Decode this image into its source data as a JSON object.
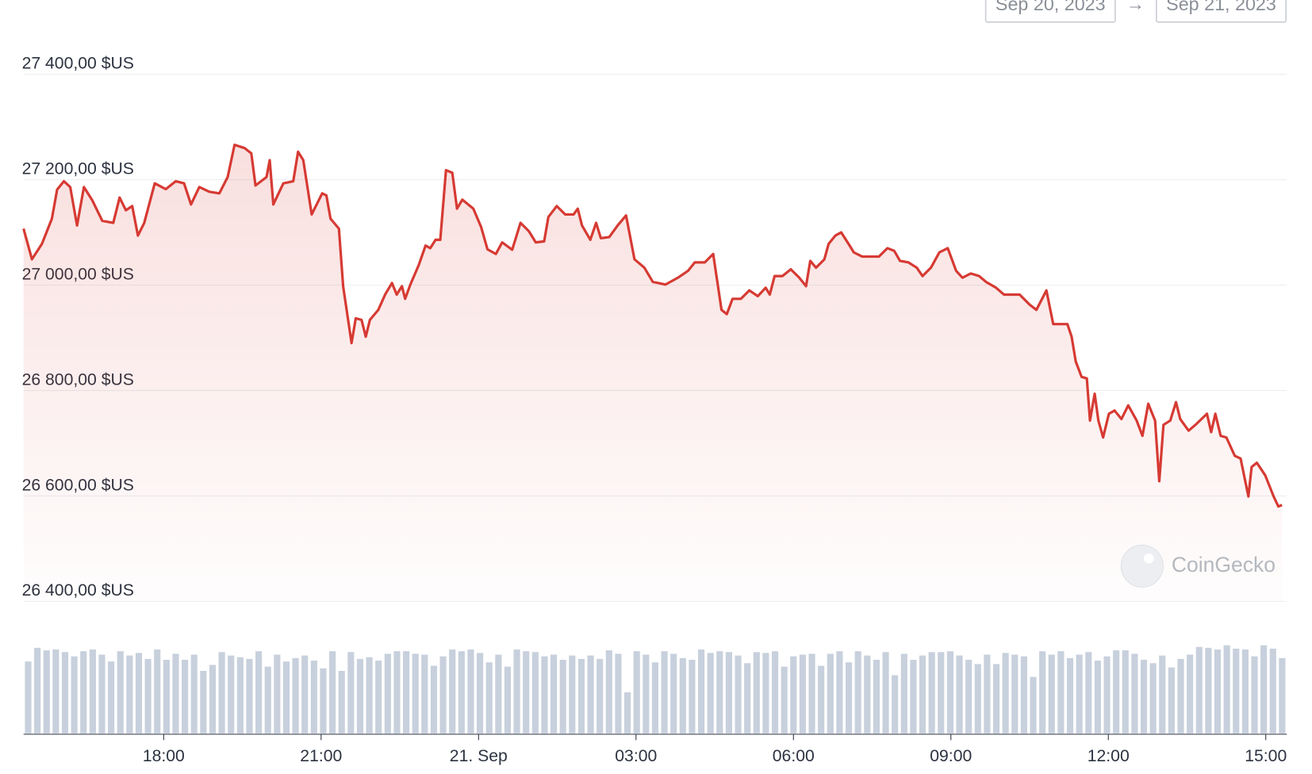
{
  "header": {
    "date_from": "Sep 20, 2023",
    "date_to": "Sep 21, 2023",
    "watermark": "CoinGecko"
  },
  "chart_data": {
    "type": "line",
    "xlim": [
      15.33,
      39.4
    ],
    "xticks": [
      {
        "value": 18,
        "label": "18:00"
      },
      {
        "value": 21,
        "label": "21:00"
      },
      {
        "value": 24,
        "label": "21. Sep"
      },
      {
        "value": 27,
        "label": "03:00"
      },
      {
        "value": 30,
        "label": "06:00"
      },
      {
        "value": 33,
        "label": "09:00"
      },
      {
        "value": 36,
        "label": "12:00"
      },
      {
        "value": 39,
        "label": "15:00"
      }
    ],
    "ylim": [
      26400,
      27400
    ],
    "yticks": [
      {
        "value": 26400,
        "label": "26 400,00 $US"
      },
      {
        "value": 26600,
        "label": "26 600,00 $US"
      },
      {
        "value": 26800,
        "label": "26 800,00 $US"
      },
      {
        "value": 27000,
        "label": "27 000,00 $US"
      },
      {
        "value": 27200,
        "label": "27 200,00 $US"
      },
      {
        "value": 27400,
        "label": "27 400,00 $US"
      }
    ],
    "grid": true,
    "x": [
      15.33,
      15.49,
      15.68,
      15.87,
      15.97,
      16.1,
      16.22,
      16.35,
      16.48,
      16.64,
      16.83,
      17.04,
      17.16,
      17.28,
      17.4,
      17.51,
      17.63,
      17.83,
      18.04,
      18.23,
      18.39,
      18.52,
      18.68,
      18.87,
      19.06,
      19.22,
      19.35,
      19.54,
      19.67,
      19.75,
      19.96,
      20.02,
      20.09,
      20.28,
      20.47,
      20.56,
      20.66,
      20.82,
      21.02,
      21.1,
      21.18,
      21.34,
      21.42,
      21.58,
      21.66,
      21.77,
      21.85,
      21.93,
      22.09,
      22.22,
      22.35,
      22.44,
      22.54,
      22.6,
      22.7,
      22.86,
      22.99,
      23.08,
      23.18,
      23.27,
      23.38,
      23.5,
      23.59,
      23.69,
      23.9,
      24.05,
      24.17,
      24.33,
      24.45,
      24.64,
      24.8,
      24.96,
      25.09,
      25.25,
      25.33,
      25.49,
      25.65,
      25.81,
      25.89,
      25.97,
      26.13,
      26.24,
      26.33,
      26.49,
      26.65,
      26.81,
      26.97,
      27.16,
      27.32,
      27.56,
      27.8,
      27.99,
      28.12,
      28.31,
      28.47,
      28.63,
      28.73,
      28.84,
      29.0,
      29.16,
      29.32,
      29.47,
      29.55,
      29.64,
      29.79,
      29.95,
      30.11,
      30.24,
      30.32,
      30.43,
      30.59,
      30.67,
      30.8,
      30.91,
      31.07,
      31.15,
      31.31,
      31.47,
      31.63,
      31.79,
      31.92,
      32.03,
      32.19,
      32.35,
      32.46,
      32.62,
      32.78,
      32.94,
      33.1,
      33.22,
      33.38,
      33.54,
      33.67,
      33.86,
      34.01,
      34.31,
      34.5,
      34.63,
      34.82,
      34.95,
      35.06,
      35.22,
      35.3,
      35.38,
      35.49,
      35.59,
      35.65,
      35.74,
      35.81,
      35.9,
      36.01,
      36.12,
      36.25,
      36.38,
      36.54,
      36.65,
      36.76,
      36.89,
      36.97,
      37.05,
      37.18,
      37.29,
      37.37,
      37.53,
      37.66,
      37.88,
      37.96,
      38.04,
      38.14,
      38.25,
      38.41,
      38.52,
      38.67,
      38.73,
      38.83,
      38.99,
      39.15,
      39.24,
      39.31
    ],
    "series": [
      {
        "color": "#d63a33",
        "values": [
          27107,
          27049,
          27078,
          27126,
          27181,
          27197,
          27186,
          27113,
          27186,
          27161,
          27122,
          27118,
          27166,
          27142,
          27150,
          27094,
          27118,
          27193,
          27182,
          27197,
          27193,
          27153,
          27186,
          27177,
          27174,
          27205,
          27266,
          27260,
          27250,
          27189,
          27205,
          27237,
          27153,
          27193,
          27197,
          27253,
          27237,
          27134,
          27174,
          27170,
          27126,
          27107,
          26998,
          26890,
          26937,
          26934,
          26902,
          26934,
          26953,
          26982,
          27004,
          26982,
          26998,
          26974,
          27001,
          27038,
          27075,
          27070,
          27086,
          27086,
          27218,
          27213,
          27145,
          27162,
          27145,
          27110,
          27068,
          27059,
          27081,
          27067,
          27118,
          27102,
          27081,
          27083,
          27129,
          27150,
          27134,
          27134,
          27145,
          27113,
          27086,
          27118,
          27089,
          27091,
          27113,
          27132,
          27049,
          27033,
          27006,
          27001,
          27014,
          27027,
          27043,
          27043,
          27059,
          26953,
          26945,
          26974,
          26974,
          26990,
          26979,
          26995,
          26982,
          27017,
          27017,
          27030,
          27014,
          26998,
          27046,
          27033,
          27049,
          27078,
          27094,
          27100,
          27075,
          27062,
          27054,
          27054,
          27054,
          27070,
          27065,
          27046,
          27043,
          27033,
          27017,
          27033,
          27062,
          27070,
          27027,
          27014,
          27022,
          27017,
          27006,
          26995,
          26982,
          26982,
          26963,
          26953,
          26990,
          26926,
          26926,
          26926,
          26902,
          26855,
          26826,
          26823,
          26743,
          26794,
          26743,
          26711,
          26756,
          26762,
          26746,
          26772,
          26743,
          26714,
          26775,
          26743,
          26628,
          26735,
          26743,
          26778,
          26746,
          26724,
          26735,
          26756,
          26721,
          26756,
          26714,
          26711,
          26676,
          26671,
          26599,
          26655,
          26663,
          26639,
          26599,
          26580,
          26583
        ]
      }
    ],
    "volume": {
      "color": "#c7d0dc",
      "ylim": [
        0,
        110
      ],
      "values": [
        84,
        100,
        97,
        98,
        95,
        90,
        96,
        98,
        92,
        84,
        96,
        91,
        94,
        87,
        98,
        86,
        93,
        86,
        92,
        73,
        80,
        95,
        91,
        89,
        87,
        96,
        78,
        92,
        84,
        88,
        91,
        85,
        76,
        96,
        73,
        95,
        87,
        89,
        85,
        93,
        96,
        96,
        93,
        92,
        79,
        90,
        98,
        96,
        98,
        94,
        83,
        92,
        78,
        98,
        96,
        95,
        90,
        92,
        86,
        91,
        87,
        91,
        87,
        97,
        93,
        48,
        96,
        92,
        83,
        96,
        93,
        88,
        86,
        98,
        94,
        96,
        95,
        91,
        82,
        95,
        94,
        96,
        78,
        90,
        92,
        93,
        79,
        93,
        96,
        83,
        96,
        91,
        86,
        95,
        68,
        93,
        86,
        91,
        95,
        95,
        96,
        91,
        86,
        81,
        92,
        81,
        94,
        92,
        90,
        66,
        96,
        92,
        96,
        88,
        92,
        95,
        85,
        90,
        97,
        97,
        93,
        86,
        82,
        91,
        77,
        87,
        92,
        101,
        100,
        98,
        103,
        99,
        98,
        90,
        103,
        99,
        88
      ]
    }
  }
}
